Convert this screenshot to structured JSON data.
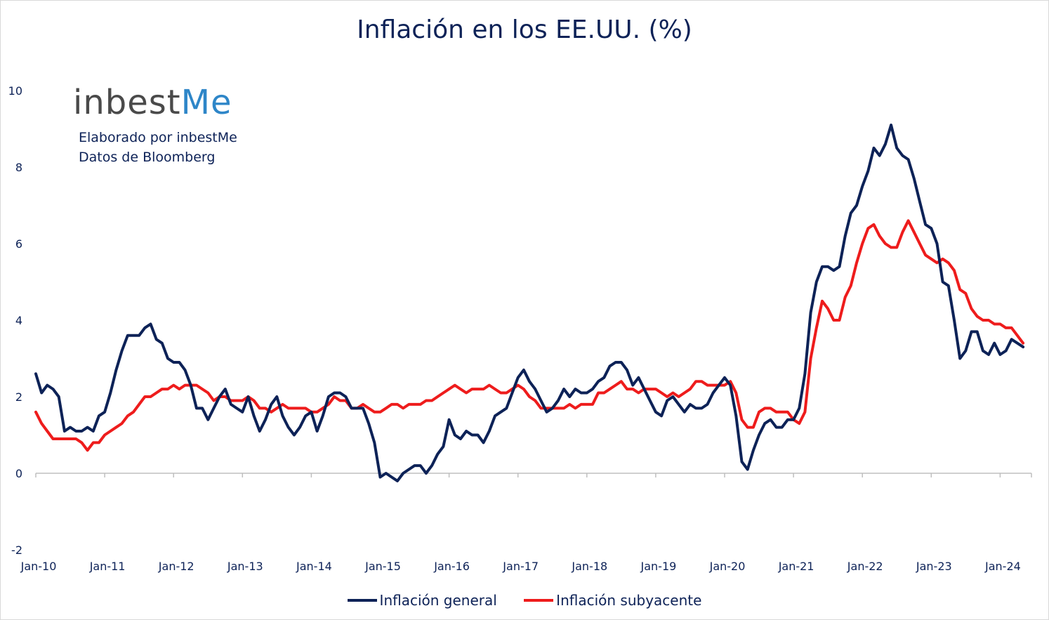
{
  "chart_data": {
    "type": "line",
    "title": "Inflación en los EE.UU. (%)",
    "xlabel": "",
    "ylabel": "",
    "ylim": [
      -2,
      10
    ],
    "yticks": [
      "-2",
      "0",
      "2",
      "4",
      "6",
      "8",
      "10"
    ],
    "xticks": [
      "Jan-10",
      "Jan-11",
      "Jan-12",
      "Jan-13",
      "Jan-14",
      "Jan-15",
      "Jan-16",
      "Jan-17",
      "Jan-18",
      "Jan-19",
      "Jan-20",
      "Jan-21",
      "Jan-22",
      "Jan-23",
      "Jan-24"
    ],
    "grid": false,
    "legend_position": "bottom",
    "x_start": "Jan-10",
    "x_end": "May-24",
    "series": [
      {
        "name": "Inflación general",
        "color": "#0d2257",
        "values": [
          2.6,
          2.1,
          2.3,
          2.2,
          2.0,
          1.1,
          1.2,
          1.1,
          1.1,
          1.2,
          1.1,
          1.5,
          1.6,
          2.1,
          2.7,
          3.2,
          3.6,
          3.6,
          3.6,
          3.8,
          3.9,
          3.5,
          3.4,
          3.0,
          2.9,
          2.9,
          2.7,
          2.3,
          1.7,
          1.7,
          1.4,
          1.7,
          2.0,
          2.2,
          1.8,
          1.7,
          1.6,
          2.0,
          1.5,
          1.1,
          1.4,
          1.8,
          2.0,
          1.5,
          1.2,
          1.0,
          1.2,
          1.5,
          1.6,
          1.1,
          1.5,
          2.0,
          2.1,
          2.1,
          2.0,
          1.7,
          1.7,
          1.7,
          1.3,
          0.8,
          -0.1,
          0.0,
          -0.1,
          -0.2,
          0.0,
          0.1,
          0.2,
          0.2,
          0.0,
          0.2,
          0.5,
          0.7,
          1.4,
          1.0,
          0.9,
          1.1,
          1.0,
          1.0,
          0.8,
          1.1,
          1.5,
          1.6,
          1.7,
          2.1,
          2.5,
          2.7,
          2.4,
          2.2,
          1.9,
          1.6,
          1.7,
          1.9,
          2.2,
          2.0,
          2.2,
          2.1,
          2.1,
          2.2,
          2.4,
          2.5,
          2.8,
          2.9,
          2.9,
          2.7,
          2.3,
          2.5,
          2.2,
          1.9,
          1.6,
          1.5,
          1.9,
          2.0,
          1.8,
          1.6,
          1.8,
          1.7,
          1.7,
          1.8,
          2.1,
          2.3,
          2.5,
          2.3,
          1.5,
          0.3,
          0.1,
          0.6,
          1.0,
          1.3,
          1.4,
          1.2,
          1.2,
          1.4,
          1.4,
          1.7,
          2.6,
          4.2,
          5.0,
          5.4,
          5.4,
          5.3,
          5.4,
          6.2,
          6.8,
          7.0,
          7.5,
          7.9,
          8.5,
          8.3,
          8.6,
          9.1,
          8.5,
          8.3,
          8.2,
          7.7,
          7.1,
          6.5,
          6.4,
          6.0,
          5.0,
          4.9,
          4.0,
          3.0,
          3.2,
          3.7,
          3.7,
          3.2,
          3.1,
          3.4,
          3.1,
          3.2,
          3.5,
          3.4,
          3.3
        ],
        "style": "thick line"
      },
      {
        "name": "Inflación subyacente",
        "color": "#ee1c1c",
        "values": [
          1.6,
          1.3,
          1.1,
          0.9,
          0.9,
          0.9,
          0.9,
          0.9,
          0.8,
          0.6,
          0.8,
          0.8,
          1.0,
          1.1,
          1.2,
          1.3,
          1.5,
          1.6,
          1.8,
          2.0,
          2.0,
          2.1,
          2.2,
          2.2,
          2.3,
          2.2,
          2.3,
          2.3,
          2.3,
          2.2,
          2.1,
          1.9,
          2.0,
          2.0,
          1.9,
          1.9,
          1.9,
          2.0,
          1.9,
          1.7,
          1.7,
          1.6,
          1.7,
          1.8,
          1.7,
          1.7,
          1.7,
          1.7,
          1.6,
          1.6,
          1.7,
          1.8,
          2.0,
          1.9,
          1.9,
          1.7,
          1.7,
          1.8,
          1.7,
          1.6,
          1.6,
          1.7,
          1.8,
          1.8,
          1.7,
          1.8,
          1.8,
          1.8,
          1.9,
          1.9,
          2.0,
          2.1,
          2.2,
          2.3,
          2.2,
          2.1,
          2.2,
          2.2,
          2.2,
          2.3,
          2.2,
          2.1,
          2.1,
          2.2,
          2.3,
          2.2,
          2.0,
          1.9,
          1.7,
          1.7,
          1.7,
          1.7,
          1.7,
          1.8,
          1.7,
          1.8,
          1.8,
          1.8,
          2.1,
          2.1,
          2.2,
          2.3,
          2.4,
          2.2,
          2.2,
          2.1,
          2.2,
          2.2,
          2.2,
          2.1,
          2.0,
          2.1,
          2.0,
          2.1,
          2.2,
          2.4,
          2.4,
          2.3,
          2.3,
          2.3,
          2.3,
          2.4,
          2.1,
          1.4,
          1.2,
          1.2,
          1.6,
          1.7,
          1.7,
          1.6,
          1.6,
          1.6,
          1.4,
          1.3,
          1.6,
          3.0,
          3.8,
          4.5,
          4.3,
          4.0,
          4.0,
          4.6,
          4.9,
          5.5,
          6.0,
          6.4,
          6.5,
          6.2,
          6.0,
          5.9,
          5.9,
          6.3,
          6.6,
          6.3,
          6.0,
          5.7,
          5.6,
          5.5,
          5.6,
          5.5,
          5.3,
          4.8,
          4.7,
          4.3,
          4.1,
          4.0,
          4.0,
          3.9,
          3.9,
          3.8,
          3.8,
          3.6,
          3.4
        ],
        "style": "thick line"
      }
    ]
  },
  "branding": {
    "logo_text_main": "inbest",
    "logo_text_accent": "Me",
    "source_line_1": "Elaborado por inbestMe",
    "source_line_2": "Datos de Bloomberg"
  }
}
